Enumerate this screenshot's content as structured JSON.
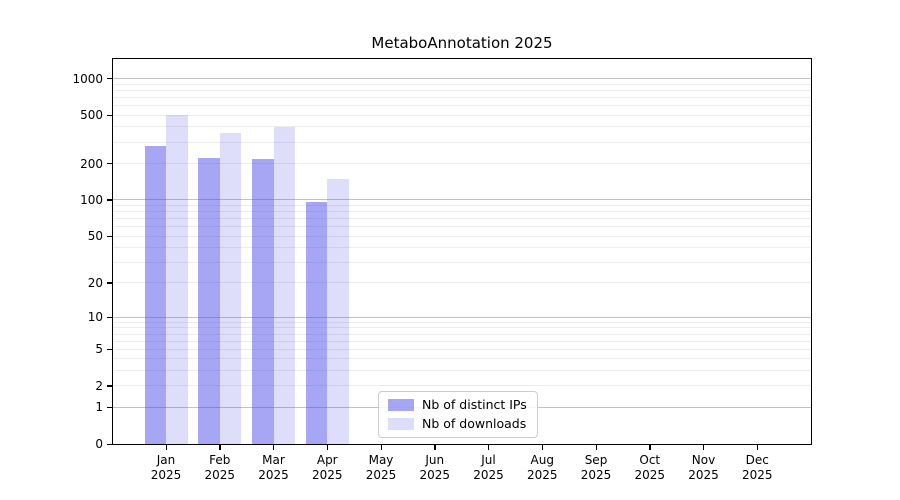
{
  "title": "MetaboAnnotation 2025",
  "chart_data": {
    "type": "bar",
    "title": "MetaboAnnotation 2025",
    "categories": [
      "Jan 2025",
      "Feb 2025",
      "Mar 2025",
      "Apr 2025",
      "May 2025",
      "Jun 2025",
      "Jul 2025",
      "Aug 2025",
      "Sep 2025",
      "Oct 2025",
      "Nov 2025",
      "Dec 2025"
    ],
    "series": [
      {
        "name": "Nb of distinct IPs",
        "color": "rgba(70,70,235,0.48)",
        "values": [
          280,
          222,
          217,
          97,
          0,
          0,
          0,
          0,
          0,
          0,
          0,
          0
        ]
      },
      {
        "name": "Nb of downloads",
        "color": "rgba(70,70,235,0.18)",
        "values": [
          500,
          360,
          400,
          148,
          0,
          0,
          0,
          0,
          0,
          0,
          0,
          0
        ]
      }
    ],
    "xlabel": "",
    "ylabel": "",
    "yscale": "log10(1+x)",
    "yticks": [
      0,
      1,
      2,
      5,
      10,
      20,
      50,
      100,
      200,
      500,
      1000
    ],
    "ylim": [
      0,
      1449
    ],
    "grid": "horizontal; gray major lines at 1,10,100,1000; faint minor log subdivisions",
    "legend_position": "inside lower-center-left",
    "colors": {
      "major_gridline": "#c2c2c2",
      "minor_gridline": "#ececec",
      "axis": "#000000",
      "background": "#ffffff"
    }
  }
}
